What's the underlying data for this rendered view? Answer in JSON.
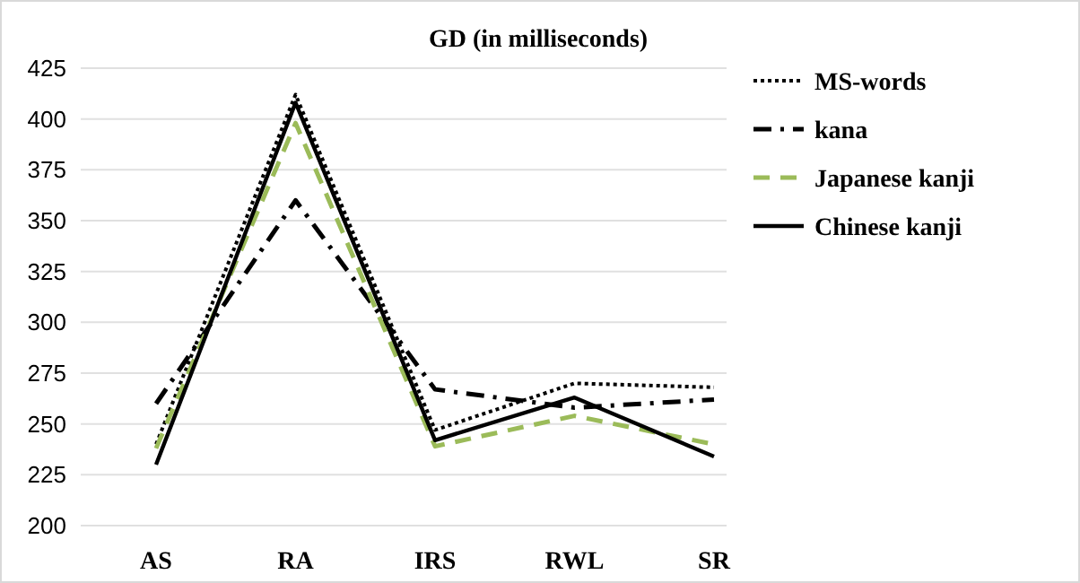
{
  "chart_data": {
    "type": "line",
    "title": "GD (in milliseconds)",
    "categories": [
      "AS",
      "RA",
      "IRS",
      "RWL",
      "SR"
    ],
    "series": [
      {
        "name": "MS-words",
        "color": "#000000",
        "line_style": "dotted",
        "values": [
          240,
          412,
          247,
          270,
          268
        ]
      },
      {
        "name": "kana",
        "color": "#000000",
        "line_style": "dashdot",
        "values": [
          260,
          360,
          267,
          258,
          262
        ]
      },
      {
        "name": "Japanese kanji",
        "color": "#9bbb59",
        "line_style": "dashed",
        "values": [
          238,
          398,
          239,
          254,
          240
        ]
      },
      {
        "name": "Chinese kanji",
        "color": "#000000",
        "line_style": "solid",
        "values": [
          230,
          408,
          242,
          263,
          234
        ]
      }
    ],
    "ylim": [
      200,
      425
    ],
    "yticks": [
      200,
      225,
      250,
      275,
      300,
      325,
      350,
      375,
      400,
      425
    ],
    "grid": "y",
    "legend": "top right",
    "marker": "none"
  }
}
